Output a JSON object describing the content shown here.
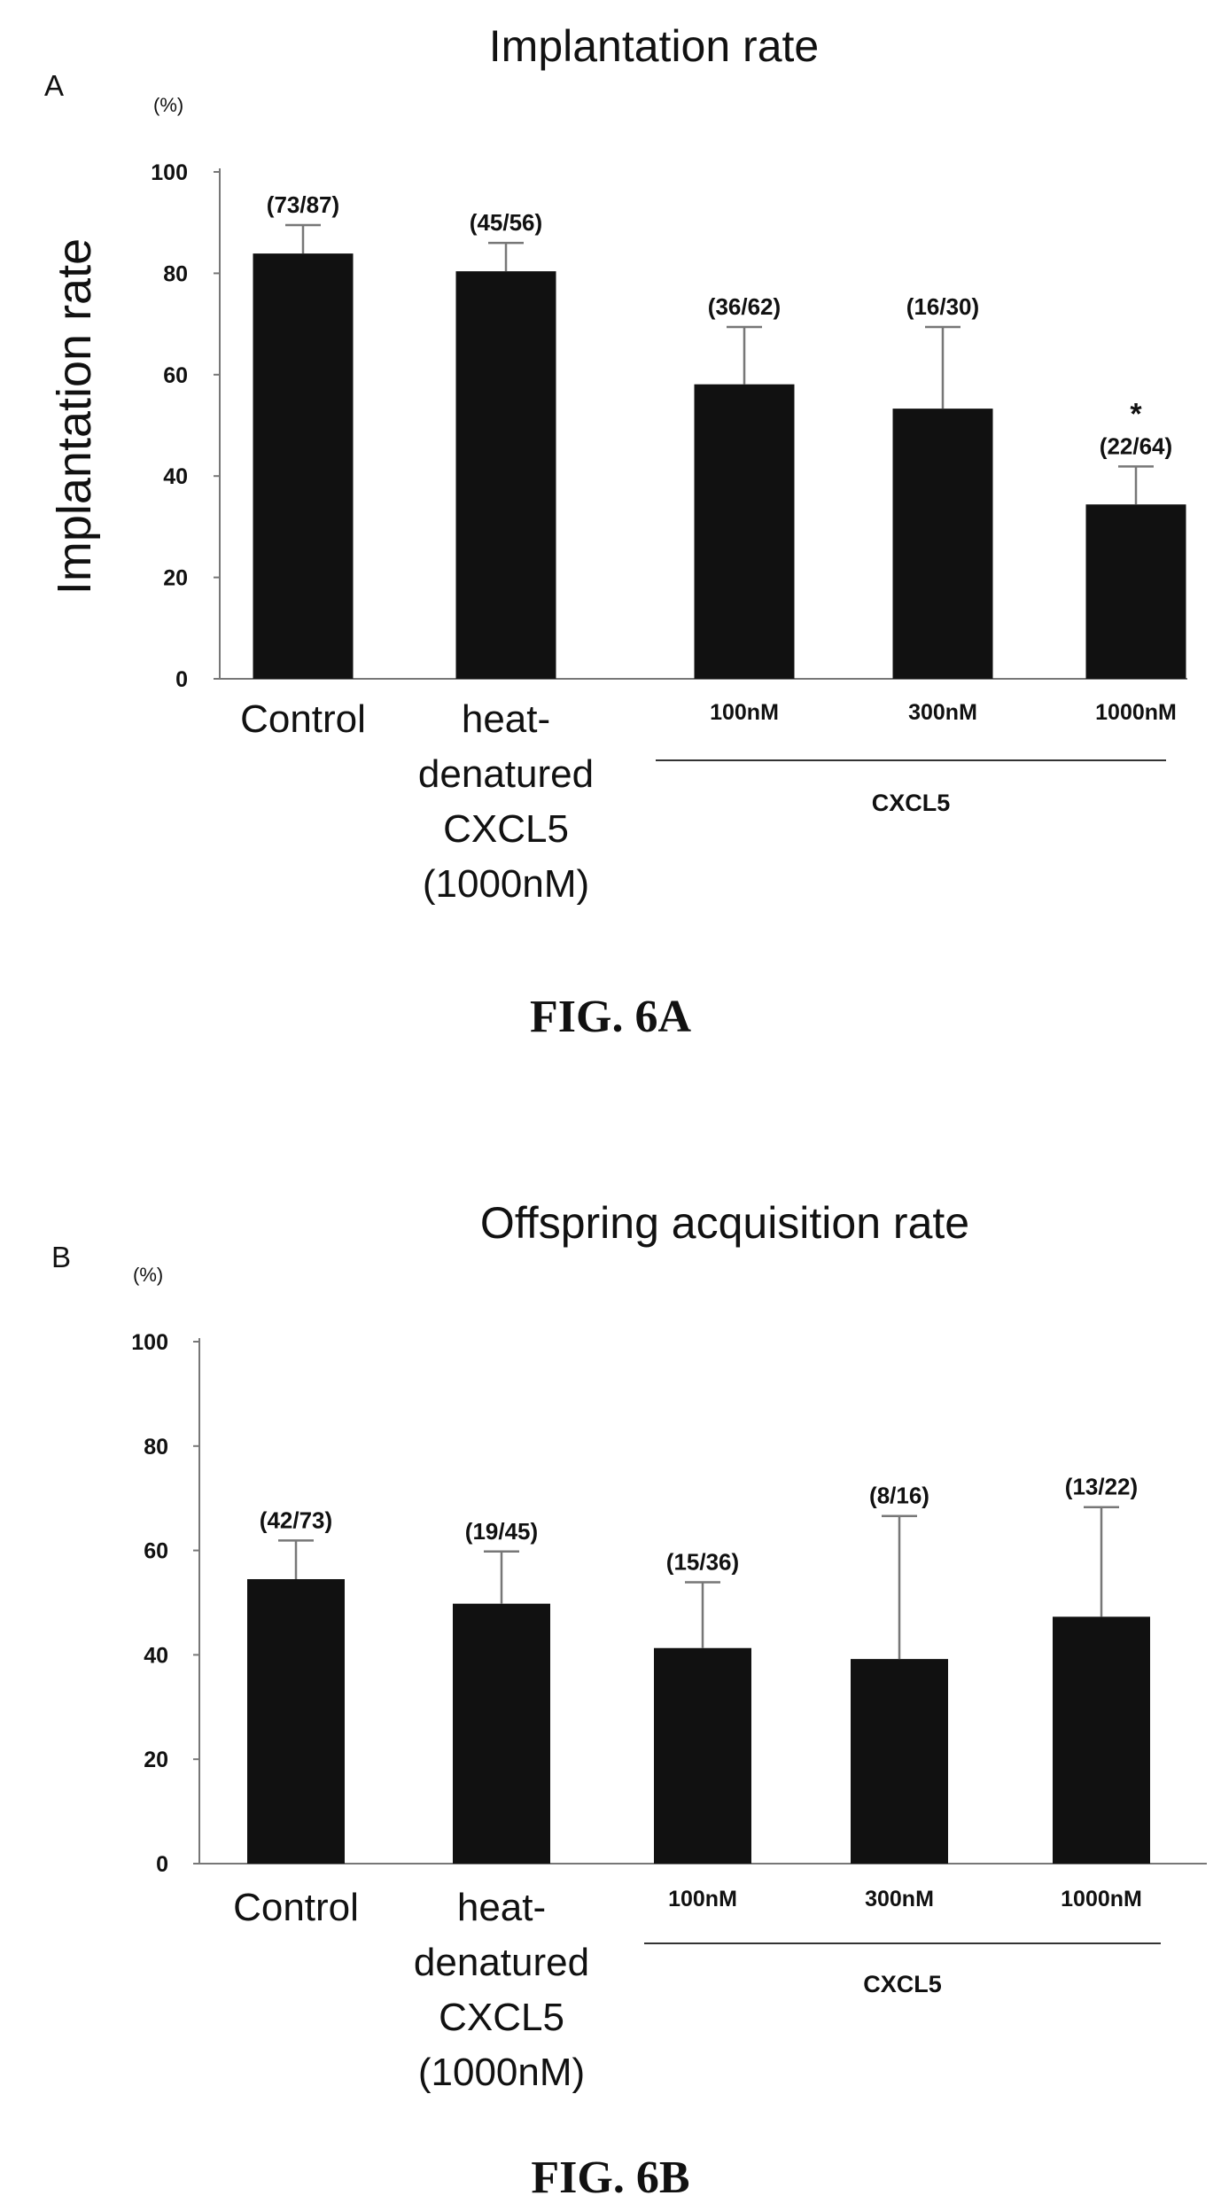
{
  "chart_data": [
    {
      "type": "bar",
      "panel_label": "A",
      "title": "Implantation rate",
      "ylabel": "Implantation rate",
      "yunit": "(%)",
      "ylim": [
        0,
        100
      ],
      "yticks": [
        "0",
        "20",
        "40",
        "60",
        "80",
        "100"
      ],
      "categories": [
        [
          "Control"
        ],
        [
          "heat-",
          "denatured",
          "CXCL5",
          "(1000nM)"
        ],
        [
          "100nM"
        ],
        [
          "300nM"
        ],
        [
          "1000nM"
        ]
      ],
      "values": [
        83.9,
        80.4,
        58.1,
        53.3,
        34.4
      ],
      "error_upper": [
        89.5,
        86.0,
        69.4,
        69.4,
        41.9
      ],
      "data_labels": [
        "(73/87)",
        "(45/56)",
        "(36/62)",
        "(16/30)",
        "(22/64)"
      ],
      "significance": [
        "",
        "",
        "",
        "",
        "*"
      ],
      "group_label": "CXCL5",
      "figure_caption": "FIG. 6A",
      "colors": {
        "bar": "#111111",
        "axis": "#777777",
        "text": "#111111"
      }
    },
    {
      "type": "bar",
      "panel_label": "B",
      "title": "Offspring acquisition rate",
      "ylabel": "",
      "yunit": "(%)",
      "ylim": [
        0,
        100
      ],
      "yticks": [
        "0",
        "20",
        "40",
        "60",
        "80",
        "100"
      ],
      "categories": [
        [
          "Control"
        ],
        [
          "heat-",
          "denatured",
          "CXCL5",
          "(1000nM)"
        ],
        [
          "100nM"
        ],
        [
          "300nM"
        ],
        [
          "1000nM"
        ]
      ],
      "values": [
        54.5,
        49.8,
        41.3,
        39.2,
        47.3
      ],
      "error_upper": [
        61.9,
        59.8,
        53.9,
        66.6,
        68.3
      ],
      "data_labels": [
        "(42/73)",
        "(19/45)",
        "(15/36)",
        "(8/16)",
        "(13/22)"
      ],
      "significance": [
        "",
        "",
        "",
        "",
        ""
      ],
      "group_label": "CXCL5",
      "figure_caption": "FIG. 6B",
      "colors": {
        "bar": "#111111",
        "axis": "#777777",
        "text": "#111111"
      }
    }
  ]
}
